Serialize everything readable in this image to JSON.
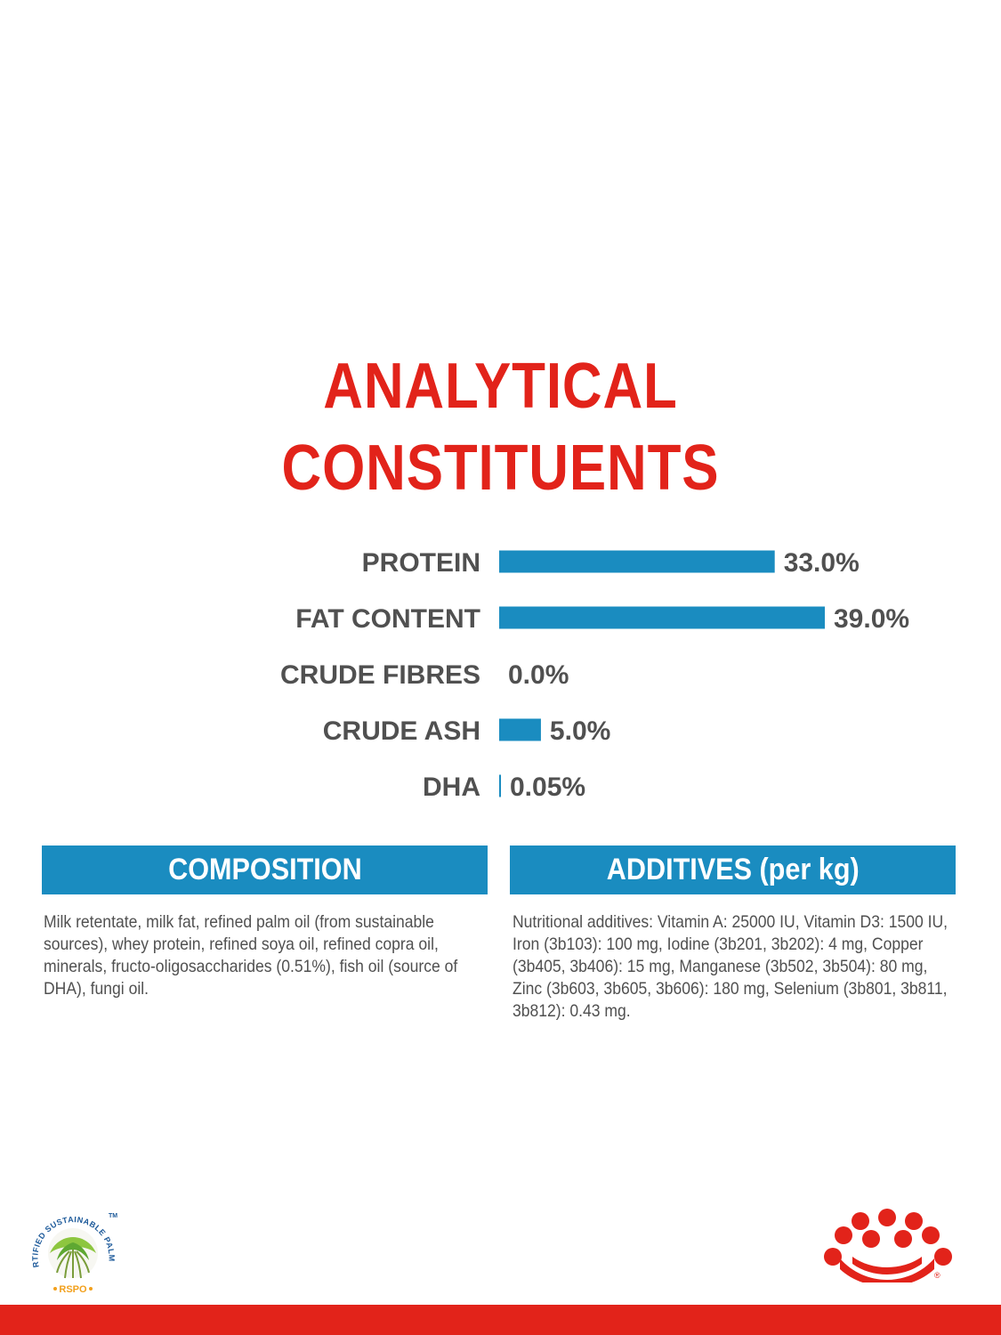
{
  "title_lines": [
    "ANALYTICAL",
    "CONSTITUENTS"
  ],
  "colors": {
    "title": "#e2231a",
    "bar": "#1a8cc0",
    "label": "#505050",
    "footer": "#e2231a"
  },
  "chart_data": {
    "type": "bar",
    "orientation": "horizontal",
    "categories": [
      "PROTEIN",
      "FAT CONTENT",
      "CRUDE FIBRES",
      "CRUDE ASH",
      "DHA"
    ],
    "values": [
      33.0,
      39.0,
      0.0,
      5.0,
      0.05
    ],
    "value_labels": [
      "33.0%",
      "39.0%",
      "0.0%",
      "5.0%",
      "0.05%"
    ],
    "xlim": [
      0,
      39
    ],
    "title": "ANALYTICAL CONSTITUENTS",
    "grid": false
  },
  "composition": {
    "header": "COMPOSITION",
    "text": "Milk retentate, milk fat, refined palm oil (from sustainable sources), whey protein, refined soya oil, refined copra oil, minerals, fructo-oligosaccharides (0.51%), fish oil (source of DHA), fungi oil."
  },
  "additives": {
    "header": "ADDITIVES (per kg)",
    "text": "Nutritional additives: Vitamin A: 25000 IU, Vitamin D3: 1500 IU, Iron (3b103): 100 mg, Iodine (3b201, 3b202): 4 mg, Copper (3b405, 3b406): 15 mg, Manganese (3b502, 3b504): 80 mg, Zinc (3b603, 3b605, 3b606): 180 mg, Selenium (3b801, 3b811, 3b812): 0.43 mg."
  },
  "logos": {
    "rspo_ring_text": "CERTIFIED SUSTAINABLE PALM OIL",
    "rspo_tm": "TM",
    "rspo_name": "RSPO",
    "royal_canin_registered": "®"
  }
}
